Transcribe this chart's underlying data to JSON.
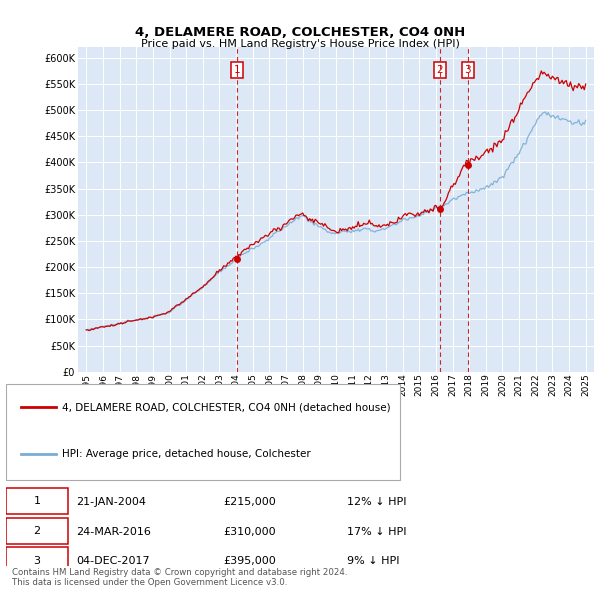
{
  "title": "4, DELAMERE ROAD, COLCHESTER, CO4 0NH",
  "subtitle": "Price paid vs. HM Land Registry's House Price Index (HPI)",
  "yticks": [
    0,
    50000,
    100000,
    150000,
    200000,
    250000,
    300000,
    350000,
    400000,
    450000,
    500000,
    550000,
    600000
  ],
  "ytick_labels": [
    "£0",
    "£50K",
    "£100K",
    "£150K",
    "£200K",
    "£250K",
    "£300K",
    "£350K",
    "£400K",
    "£450K",
    "£500K",
    "£550K",
    "£600K"
  ],
  "bg_color": "#dce8f5",
  "grid_color": "#ffffff",
  "hpi_color": "#7aadd4",
  "price_color": "#cc0000",
  "dashed_line_color": "#cc0000",
  "transactions": [
    {
      "date_str": "21-JAN-2004",
      "date_num": 2004.05,
      "price": 215000,
      "label": "1",
      "hpi_pct": "12% ↓ HPI"
    },
    {
      "date_str": "24-MAR-2016",
      "date_num": 2016.23,
      "price": 310000,
      "label": "2",
      "hpi_pct": "17% ↓ HPI"
    },
    {
      "date_str": "04-DEC-2017",
      "date_num": 2017.92,
      "price": 395000,
      "label": "3",
      "hpi_pct": "9% ↓ HPI"
    }
  ],
  "legend_entries": [
    "4, DELAMERE ROAD, COLCHESTER, CO4 0NH (detached house)",
    "HPI: Average price, detached house, Colchester"
  ],
  "table_data": [
    [
      "1",
      "21-JAN-2004",
      "£215,000",
      "12% ↓ HPI"
    ],
    [
      "2",
      "24-MAR-2016",
      "£310,000",
      "17% ↓ HPI"
    ],
    [
      "3",
      "04-DEC-2017",
      "£395,000",
      "9% ↓ HPI"
    ]
  ],
  "footer_text": "Contains HM Land Registry data © Crown copyright and database right 2024.\nThis data is licensed under the Open Government Licence v3.0.",
  "xmin": 1994.5,
  "xmax": 2025.5,
  "ymin": 0,
  "ymax": 620000
}
